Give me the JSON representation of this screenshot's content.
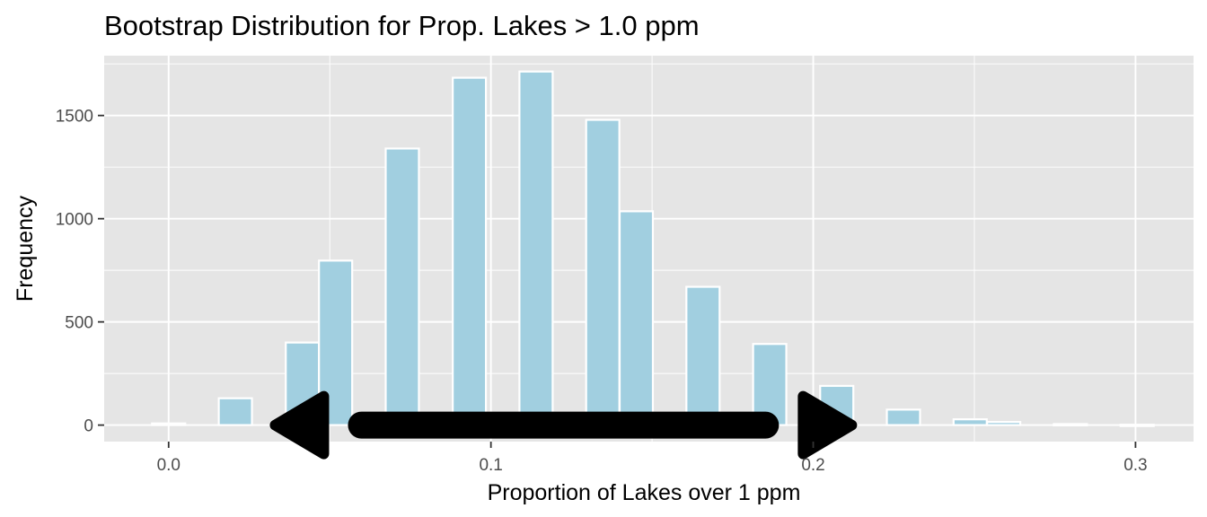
{
  "chart_data": {
    "type": "bar",
    "title": "Bootstrap Distribution for Prop. Lakes > 1.0 ppm",
    "xlabel": "Proportion of Lakes over 1 ppm",
    "ylabel": "Frequency",
    "xlim": [
      -0.02,
      0.318
    ],
    "ylim": [
      -80,
      1790
    ],
    "x_ticks": [
      {
        "value": 0.0,
        "label": "0.0"
      },
      {
        "value": 0.1,
        "label": "0.1"
      },
      {
        "value": 0.2,
        "label": "0.2"
      },
      {
        "value": 0.3,
        "label": "0.3"
      }
    ],
    "y_ticks": [
      {
        "value": 0,
        "label": "0"
      },
      {
        "value": 500,
        "label": "500"
      },
      {
        "value": 1000,
        "label": "1000"
      },
      {
        "value": 1500,
        "label": "1500"
      }
    ],
    "grid": true,
    "bin_width": 0.0103,
    "bins": [
      {
        "x": 0.0,
        "count": 8
      },
      {
        "x": 0.0207,
        "count": 130
      },
      {
        "x": 0.0415,
        "count": 400
      },
      {
        "x": 0.0518,
        "count": 797
      },
      {
        "x": 0.0725,
        "count": 1340
      },
      {
        "x": 0.0933,
        "count": 1683
      },
      {
        "x": 0.114,
        "count": 1713
      },
      {
        "x": 0.1347,
        "count": 1479
      },
      {
        "x": 0.1451,
        "count": 1036
      },
      {
        "x": 0.1658,
        "count": 670
      },
      {
        "x": 0.1865,
        "count": 393
      },
      {
        "x": 0.2073,
        "count": 190
      },
      {
        "x": 0.228,
        "count": 75
      },
      {
        "x": 0.2487,
        "count": 28
      },
      {
        "x": 0.2591,
        "count": 15
      },
      {
        "x": 0.2798,
        "count": 5
      },
      {
        "x": 0.3005,
        "count": 2
      }
    ],
    "annotation": {
      "type": "double-headed-arrow",
      "x_start": 0.047,
      "x_end": 0.198,
      "y": 0
    },
    "colors": {
      "bar_fill": "#a1cfe0",
      "bar_outline": "#ffffff",
      "panel_background": "#e5e5e5",
      "gridline": "#ffffff",
      "arrow": "#000000"
    }
  }
}
